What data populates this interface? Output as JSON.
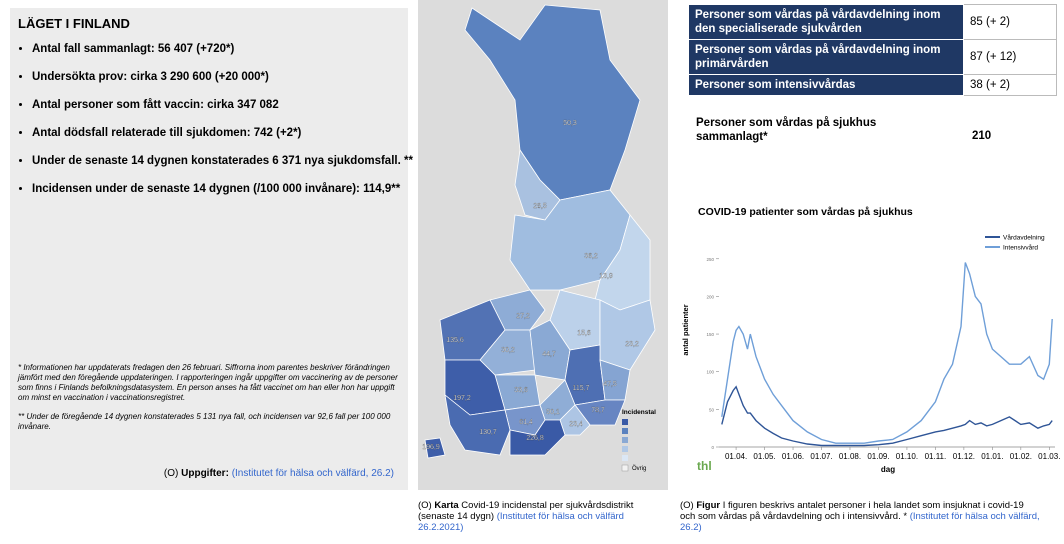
{
  "left_panel": {
    "title": "LÄGET I FINLAND",
    "bullets": [
      "Antal fall sammanlagt: 56 407 (+720*)",
      "Undersökta prov: cirka 3 290 600 (+20 000*)",
      "Antal personer som fått vaccin: cirka 347 082",
      "Antal dödsfall relaterade till sjukdomen: 742 (+2*)",
      "Under de senaste 14 dygnen konstaterades 6 371 nya sjukdomsfall. **",
      "Incidensen under de senaste 14 dygnen (/100 000 invånare): 114,9**"
    ],
    "notes": [
      "* Informationen har uppdaterats fredagen den 26 februari. Siffrorna inom parentes beskriver förändringen jämfört med den föregående uppdateringen. I rapporteringen ingår uppgifter om vaccinering av de personer som finns i Finlands befolkningsdatasystem. En person anses ha fått vaccinet om han eller hon har uppgift om minst en vaccination i vaccinationsregistret.",
      "** Under de föregående 14 dygnen konstaterades 5 131 nya fall, och incidensen var 92,6 fall per 100 000 invånare."
    ],
    "source": {
      "prefix": "(O)",
      "label": "Uppgifter:",
      "link": "(Institutet för hälsa och välfärd, 26.2)"
    }
  },
  "map": {
    "labels": [
      "50,3",
      "28,5",
      "36,2",
      "13,9",
      "27,2",
      "15,6",
      "23,2",
      "135,6",
      "30,2",
      "44,7",
      "115,7",
      "47,5",
      "33,6",
      "197,2",
      "78,7",
      "50,1",
      "61,4",
      "23,4",
      "130,7",
      "226,8",
      "196,9"
    ],
    "legend": {
      "title": "Incidenstal",
      "other": "Övrig"
    },
    "caption": {
      "prefix": "(O)",
      "label": "Karta",
      "text": "Covid-19 incidenstal per sjukvårdsdistrikt (senaste 14 dygn)",
      "link": "(Institutet för hälsa och välfärd 26.2.2021)"
    }
  },
  "table": {
    "rows": [
      [
        "Personer som vårdas på vårdavdelning inom den specialiserade sjukvården",
        "85 (+ 2)"
      ],
      [
        "Personer som vårdas på vårdavdelning inom primärvården",
        "87 (+ 12)"
      ],
      [
        "Personer som intensivvårdas",
        "38 (+ 2)"
      ]
    ],
    "total": [
      "Personer som vårdas på sjukhus sammanlagt*",
      "210"
    ]
  },
  "chart_data": {
    "type": "line",
    "title": "COVID-19 patienter som vårdas på sjukhus",
    "x_label": "dag",
    "y_label": "antal patienter",
    "x": [
      -0.5,
      -0.3,
      -0.1,
      0,
      0.1,
      0.25,
      0.4,
      0.5,
      0.7,
      1,
      1.3,
      1.6,
      2,
      2.5,
      3,
      3.5,
      4,
      4.5,
      5,
      5.5,
      6,
      6.5,
      7,
      7.3,
      7.6,
      7.9,
      8.05,
      8.2,
      8.4,
      8.6,
      8.8,
      9,
      9.3,
      9.6,
      10,
      10.3,
      10.6,
      10.8,
      11,
      11.1
    ],
    "series": [
      {
        "name": "Vårdavdelning",
        "color": "#2f5597",
        "values": [
          30,
          60,
          75,
          80,
          70,
          55,
          45,
          45,
          35,
          25,
          18,
          12,
          8,
          4,
          2,
          2,
          2,
          2,
          3,
          5,
          10,
          15,
          20,
          22,
          25,
          28,
          30,
          35,
          30,
          32,
          28,
          30,
          35,
          40,
          30,
          32,
          25,
          28,
          30,
          35
        ]
      },
      {
        "name": "Intensivvård",
        "color": "#6f9fd8",
        "values": [
          40,
          90,
          140,
          155,
          160,
          150,
          130,
          150,
          120,
          90,
          70,
          55,
          35,
          20,
          10,
          5,
          5,
          5,
          8,
          10,
          20,
          35,
          60,
          90,
          110,
          160,
          245,
          230,
          200,
          190,
          150,
          130,
          120,
          110,
          110,
          120,
          95,
          90,
          110,
          170
        ]
      }
    ],
    "xlim": [
      -0.6,
      11.2
    ],
    "xticks": [
      {
        "value": 0,
        "label": "01.04."
      },
      {
        "value": 1,
        "label": "01.05."
      },
      {
        "value": 2,
        "label": "01.06."
      },
      {
        "value": 3,
        "label": "01.07."
      },
      {
        "value": 4,
        "label": "01.08."
      },
      {
        "value": 5,
        "label": "01.09."
      },
      {
        "value": 6,
        "label": "01.10."
      },
      {
        "value": 7,
        "label": "01.11."
      },
      {
        "value": 8,
        "label": "01.12."
      },
      {
        "value": 9,
        "label": "01.01."
      },
      {
        "value": 10,
        "label": "01.02."
      },
      {
        "value": 11,
        "label": "01.03."
      }
    ],
    "ylim": [
      0,
      255
    ],
    "yticks": [
      0,
      50,
      100,
      150,
      200,
      250
    ],
    "grid": false,
    "legend": "top-right"
  },
  "logo": "thl",
  "chart_caption": {
    "prefix": "(O)",
    "label": "Figur",
    "text": "I figuren beskrivs antalet personer i hela landet som insjuknat i covid-19 och som vårdas på vårdavdelning och i intensivvård. *",
    "link": "(Institutet för hälsa och välfärd, 26.2)"
  }
}
